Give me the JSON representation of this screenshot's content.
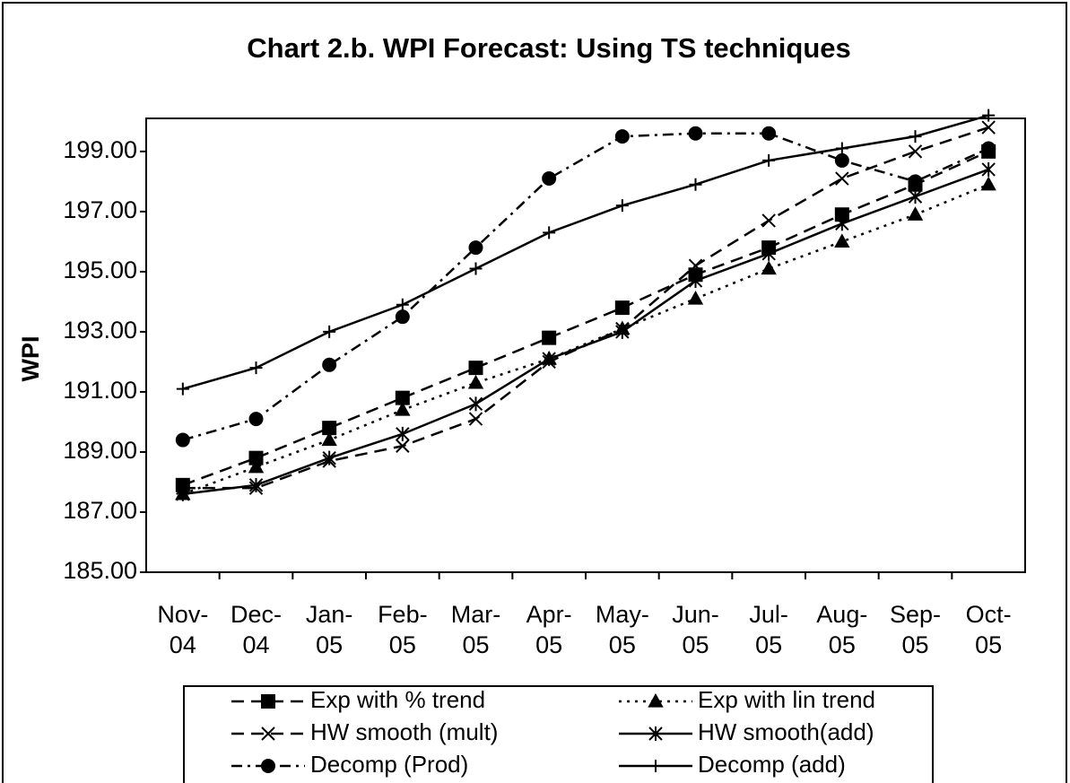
{
  "chart_data": {
    "type": "line",
    "title": "Chart 2.b. WPI Forecast: Using TS techniques",
    "y_label": "WPI",
    "categories": [
      "Nov-\n04",
      "Dec-\n04",
      "Jan-\n05",
      "Feb-\n05",
      "Mar-\n05",
      "Apr-\n05",
      "May-\n05",
      "Jun-\n05",
      "Jul-\n05",
      "Aug-\n05",
      "Sep-\n05",
      "Oct-\n05"
    ],
    "series": [
      {
        "name": "Exp with % trend",
        "color": "#000000",
        "marker": "square",
        "line_style": "dashed",
        "values": [
          187.9,
          188.8,
          189.8,
          190.8,
          191.8,
          192.8,
          193.8,
          194.9,
          195.8,
          196.9,
          197.9,
          199.0
        ]
      },
      {
        "name": "Exp with lin trend",
        "color": "#000000",
        "marker": "triangle",
        "line_style": "dotted",
        "values": [
          187.6,
          188.5,
          189.4,
          190.4,
          191.3,
          192.1,
          193.1,
          194.1,
          195.1,
          196.0,
          196.9,
          197.9
        ]
      },
      {
        "name": "HW smooth (mult)",
        "color": "#000000",
        "marker": "x",
        "line_style": "dashed",
        "values": [
          187.8,
          187.8,
          188.7,
          189.2,
          190.1,
          192.0,
          193.1,
          195.2,
          196.7,
          198.1,
          199.0,
          199.8
        ]
      },
      {
        "name": "HW smooth(add)",
        "color": "#000000",
        "marker": "asterisk",
        "line_style": "solid",
        "values": [
          187.6,
          187.9,
          188.8,
          189.6,
          190.6,
          192.1,
          193.0,
          194.7,
          195.6,
          196.6,
          197.5,
          198.4
        ]
      },
      {
        "name": "Decomp (Prod)",
        "color": "#000000",
        "marker": "circle",
        "line_style": "dashdot",
        "values": [
          189.4,
          190.1,
          191.9,
          193.5,
          195.8,
          198.1,
          199.5,
          199.6,
          199.6,
          198.7,
          198.0,
          199.1
        ]
      },
      {
        "name": "Decomp (add)",
        "color": "#000000",
        "marker": "plus",
        "line_style": "solid",
        "values": [
          191.1,
          191.8,
          193.0,
          193.9,
          195.1,
          196.3,
          197.2,
          197.9,
          198.7,
          199.1,
          199.5,
          200.2
        ]
      }
    ],
    "ylim": [
      185,
      200.1
    ],
    "yticks": [
      {
        "value": 185,
        "label": "185.00"
      },
      {
        "value": 187,
        "label": "187.00"
      },
      {
        "value": 189,
        "label": "189.00"
      },
      {
        "value": 191,
        "label": "191.00"
      },
      {
        "value": 193,
        "label": "193.00"
      },
      {
        "value": 195,
        "label": "195.00"
      },
      {
        "value": 197,
        "label": "197.00"
      },
      {
        "value": 199,
        "label": "199.00"
      }
    ],
    "grid": false
  }
}
